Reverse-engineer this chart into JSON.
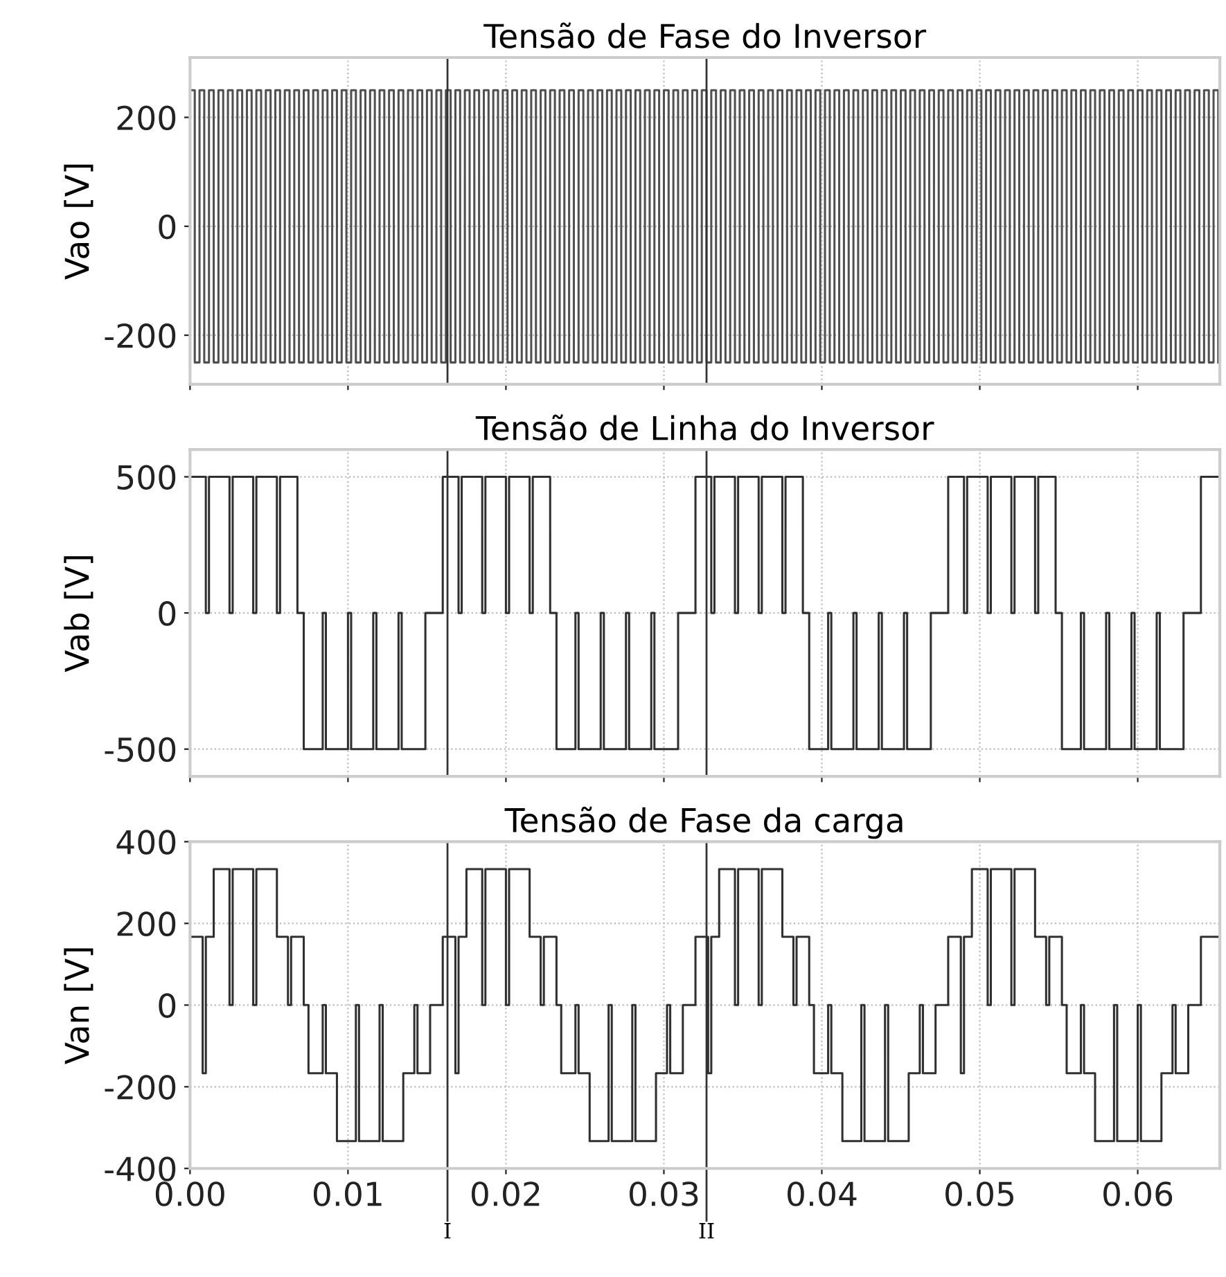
{
  "chart_data": [
    {
      "type": "step",
      "title": "Tensão de Fase do Inversor",
      "ylabel": "Vao [V]",
      "xlim": [
        0,
        0.0652
      ],
      "ylim": [
        -290,
        310
      ],
      "xticks": [
        {
          "value": 0,
          "label": null
        },
        {
          "value": 0.01,
          "label": null
        },
        {
          "value": 0.02,
          "label": null
        },
        {
          "value": 0.03,
          "label": null
        },
        {
          "value": 0.04,
          "label": null
        },
        {
          "value": 0.05,
          "label": null
        },
        {
          "value": 0.06,
          "label": null
        }
      ],
      "yticks": [
        -200,
        0,
        200
      ],
      "tick_labels": "y",
      "grid": true,
      "ref_lines": [
        {
          "axis": "x",
          "value": 0.0163
        },
        {
          "axis": "x",
          "value": 0.0327
        }
      ],
      "series": [
        {
          "color": "#505050",
          "x": [
            0,
            0.0003,
            0.0006,
            0.0009,
            0.0012,
            0.0015,
            0.0018,
            0.0021,
            0.0024,
            0.0027,
            0.003,
            0.0033,
            0.0036,
            0.0039,
            0.0042,
            0.0045,
            0.0048,
            0.0051,
            0.0054,
            0.0057,
            0.006,
            0.0063,
            0.0066,
            0.0069,
            0.0072,
            0.0075,
            0.0078,
            0.0081,
            0.0084,
            0.0087,
            0.009,
            0.0093,
            0.0096,
            0.0099,
            0.0102,
            0.0105,
            0.0108,
            0.0111,
            0.0114,
            0.0117,
            0.012,
            0.0123,
            0.0126,
            0.0129,
            0.0132,
            0.0135,
            0.0138,
            0.0141,
            0.0144,
            0.0147,
            0.015,
            0.0153,
            0.0156,
            0.0159,
            0.0162,
            0.0165,
            0.0168,
            0.0171,
            0.0174,
            0.0177,
            0.018,
            0.0183,
            0.0186,
            0.0189,
            0.0192,
            0.0195,
            0.0198,
            0.0201,
            0.0204,
            0.0207,
            0.021,
            0.0213,
            0.0216,
            0.0219,
            0.0222,
            0.0225,
            0.0228,
            0.0231,
            0.0234,
            0.0237,
            0.024,
            0.0243,
            0.0246,
            0.0249,
            0.0252,
            0.0255,
            0.0258,
            0.0261,
            0.0264,
            0.0267,
            0.027,
            0.0273,
            0.0276,
            0.0279,
            0.0282,
            0.0285,
            0.0288,
            0.0291,
            0.0294,
            0.0297,
            0.03,
            0.0303,
            0.0306,
            0.0309,
            0.0312,
            0.0315,
            0.0318,
            0.0321,
            0.0324,
            0.0327,
            0.033,
            0.0333,
            0.0336,
            0.0339,
            0.0342,
            0.0345,
            0.0348,
            0.0351,
            0.0354,
            0.0357,
            0.036,
            0.0363,
            0.0366,
            0.0369,
            0.0372,
            0.0375,
            0.0378,
            0.0381,
            0.0384,
            0.0387,
            0.039,
            0.0393,
            0.0396,
            0.0399,
            0.0402,
            0.0405,
            0.0408,
            0.0411,
            0.0414,
            0.0417,
            0.042,
            0.0423,
            0.0426,
            0.0429,
            0.0432,
            0.0435,
            0.0438,
            0.0441,
            0.0444,
            0.0447,
            0.045,
            0.0453,
            0.0456,
            0.0459,
            0.0462,
            0.0465,
            0.0468,
            0.0471,
            0.0474,
            0.0477,
            0.048,
            0.0483,
            0.0486,
            0.0489,
            0.0492,
            0.0495,
            0.0498,
            0.0501,
            0.0504,
            0.0507,
            0.051,
            0.0513,
            0.0516,
            0.0519,
            0.0522,
            0.0525,
            0.0528,
            0.0531,
            0.0534,
            0.0537,
            0.054,
            0.0543,
            0.0546,
            0.0549,
            0.0552,
            0.0555,
            0.0558,
            0.0561,
            0.0564,
            0.0567,
            0.057,
            0.0573,
            0.0576,
            0.0579,
            0.0582,
            0.0585,
            0.0588,
            0.0591,
            0.0594,
            0.0597,
            0.06,
            0.0603,
            0.0606,
            0.0609,
            0.0612,
            0.0615,
            0.0618,
            0.0621,
            0.0624,
            0.0627,
            0.063,
            0.0633,
            0.0636,
            0.0639,
            0.0642,
            0.0645,
            0.0648,
            0.0651
          ],
          "values": [
            250,
            -250,
            250,
            -250,
            250,
            -250,
            250,
            -250,
            250,
            -250,
            250,
            -250,
            250,
            -250,
            250,
            -250,
            250,
            -250,
            250,
            -250,
            250,
            -250,
            250,
            -250,
            250,
            -250,
            250,
            -250,
            250,
            -250,
            250,
            -250,
            250,
            -250,
            250,
            -250,
            250,
            -250,
            250,
            -250,
            250,
            -250,
            250,
            -250,
            250,
            -250,
            250,
            -250,
            250,
            -250,
            250,
            -250,
            250,
            -250,
            250,
            -250,
            250,
            -250,
            250,
            -250,
            250,
            -250,
            250,
            -250,
            250,
            -250,
            250,
            -250,
            250,
            -250,
            250,
            -250,
            250,
            -250,
            250,
            -250,
            250,
            -250,
            250,
            -250,
            250,
            -250,
            250,
            -250,
            250,
            -250,
            250,
            -250,
            250,
            -250,
            250,
            -250,
            250,
            -250,
            250,
            -250,
            250,
            -250,
            250,
            -250,
            250,
            -250,
            250,
            -250,
            250,
            -250,
            250,
            -250,
            250,
            -250,
            250,
            -250,
            250,
            -250,
            250,
            -250,
            250,
            -250,
            250,
            -250,
            250,
            -250,
            250,
            -250,
            250,
            -250,
            250,
            -250,
            250,
            -250,
            250,
            -250,
            250,
            -250,
            250,
            -250,
            250,
            -250,
            250,
            -250,
            250,
            -250,
            250,
            -250,
            250,
            -250,
            250,
            -250,
            250,
            -250,
            250,
            -250,
            250,
            -250,
            250,
            -250,
            250,
            -250,
            250,
            -250,
            250,
            -250,
            250,
            -250,
            250,
            -250,
            250,
            -250,
            250,
            -250,
            250,
            -250,
            250,
            -250,
            250,
            -250,
            250,
            -250,
            250,
            -250,
            250,
            -250,
            250,
            -250,
            250,
            -250,
            250,
            -250,
            250,
            -250,
            250,
            -250,
            250,
            -250,
            250,
            -250,
            250,
            -250,
            250,
            -250,
            250,
            -250,
            250,
            -250,
            250,
            -250,
            250,
            -250,
            250,
            -250,
            250,
            -250,
            250,
            -250,
            250,
            -250,
            250,
            -250
          ]
        }
      ]
    },
    {
      "type": "step",
      "title": "Tensão de Linha do Inversor",
      "ylabel": "Vab [V]",
      "xlim": [
        0,
        0.0652
      ],
      "ylim": [
        -600,
        600
      ],
      "xticks": [
        {
          "value": 0,
          "label": null
        },
        {
          "value": 0.01,
          "label": null
        },
        {
          "value": 0.02,
          "label": null
        },
        {
          "value": 0.03,
          "label": null
        },
        {
          "value": 0.04,
          "label": null
        },
        {
          "value": 0.05,
          "label": null
        },
        {
          "value": 0.06,
          "label": null
        }
      ],
      "yticks": [
        -500,
        0,
        500
      ],
      "tick_labels": "y",
      "grid": true,
      "ref_lines": [
        {
          "axis": "x",
          "value": 0.0163
        },
        {
          "axis": "x",
          "value": 0.0327
        }
      ],
      "series": [
        {
          "color": "#303030",
          "x": [
            0,
            0.001,
            0.0012,
            0.0025,
            0.0027,
            0.004,
            0.0042,
            0.0055,
            0.0057,
            0.0068,
            0.0072,
            0.0084,
            0.0086,
            0.01,
            0.0102,
            0.0116,
            0.0118,
            0.0132,
            0.0134,
            0.0149,
            0.016,
            0.017,
            0.0172,
            0.0185,
            0.0187,
            0.02,
            0.0202,
            0.0215,
            0.0217,
            0.0228,
            0.0232,
            0.0244,
            0.0246,
            0.026,
            0.0262,
            0.0276,
            0.0278,
            0.0292,
            0.0294,
            0.0309,
            0.032,
            0.033,
            0.0332,
            0.0345,
            0.0347,
            0.036,
            0.0362,
            0.0375,
            0.0377,
            0.0388,
            0.0392,
            0.0404,
            0.0406,
            0.042,
            0.0422,
            0.0436,
            0.0438,
            0.0452,
            0.0454,
            0.0469,
            0.048,
            0.049,
            0.0492,
            0.0505,
            0.0507,
            0.052,
            0.0522,
            0.0535,
            0.0537,
            0.0548,
            0.0552,
            0.0564,
            0.0566,
            0.058,
            0.0582,
            0.0596,
            0.0598,
            0.0612,
            0.0614,
            0.0629,
            0.064,
            0.0652
          ],
          "values": [
            500,
            0,
            500,
            0,
            500,
            0,
            500,
            0,
            500,
            0,
            -500,
            0,
            -500,
            0,
            -500,
            0,
            -500,
            0,
            -500,
            0,
            500,
            0,
            500,
            0,
            500,
            0,
            500,
            0,
            500,
            0,
            -500,
            0,
            -500,
            0,
            -500,
            0,
            -500,
            0,
            -500,
            0,
            500,
            0,
            500,
            0,
            500,
            0,
            500,
            0,
            500,
            0,
            -500,
            0,
            -500,
            0,
            -500,
            0,
            -500,
            0,
            -500,
            0,
            500,
            0,
            500,
            0,
            500,
            0,
            500,
            0,
            500,
            0,
            -500,
            0,
            -500,
            0,
            -500,
            0,
            -500,
            0,
            -500,
            0,
            500,
            500
          ]
        }
      ]
    },
    {
      "type": "step",
      "title": "Tensão de Fase da carga",
      "ylabel": "Van [V]",
      "xlim": [
        0,
        0.0652
      ],
      "ylim": [
        -400,
        400
      ],
      "xticks": [
        {
          "value": 0,
          "label": "0.00"
        },
        {
          "value": 0.01,
          "label": "0.01"
        },
        {
          "value": 0.02,
          "label": "0.02"
        },
        {
          "value": 0.03,
          "label": "0.03"
        },
        {
          "value": 0.04,
          "label": "0.04"
        },
        {
          "value": 0.05,
          "label": "0.05"
        },
        {
          "value": 0.06,
          "label": "0.06"
        }
      ],
      "yticks": [
        -400,
        -200,
        0,
        200,
        400
      ],
      "grid": true,
      "ref_lines": [
        {
          "axis": "x",
          "value": 0.0163,
          "label": "I"
        },
        {
          "axis": "x",
          "value": 0.0327,
          "label": "II"
        }
      ],
      "series": [
        {
          "color": "#303030",
          "x": [
            0,
            0.0008,
            0.001,
            0.0015,
            0.0025,
            0.0027,
            0.004,
            0.0042,
            0.0055,
            0.0062,
            0.0064,
            0.0072,
            0.0075,
            0.0084,
            0.0086,
            0.0093,
            0.0105,
            0.0107,
            0.012,
            0.0122,
            0.0135,
            0.0142,
            0.0144,
            0.0152,
            0.016,
            0.0168,
            0.017,
            0.0175,
            0.0185,
            0.0187,
            0.02,
            0.0202,
            0.0215,
            0.0222,
            0.0224,
            0.0232,
            0.0235,
            0.0244,
            0.0246,
            0.0253,
            0.0265,
            0.0267,
            0.028,
            0.0282,
            0.0295,
            0.0302,
            0.0304,
            0.0312,
            0.032,
            0.0328,
            0.033,
            0.0335,
            0.0345,
            0.0347,
            0.036,
            0.0362,
            0.0375,
            0.0382,
            0.0384,
            0.0392,
            0.0395,
            0.0404,
            0.0406,
            0.0413,
            0.0425,
            0.0427,
            0.044,
            0.0442,
            0.0455,
            0.0462,
            0.0464,
            0.0472,
            0.048,
            0.0488,
            0.049,
            0.0495,
            0.0505,
            0.0507,
            0.052,
            0.0522,
            0.0535,
            0.0542,
            0.0544,
            0.0552,
            0.0555,
            0.0564,
            0.0566,
            0.0573,
            0.0585,
            0.0587,
            0.06,
            0.0602,
            0.0615,
            0.0622,
            0.0624,
            0.0632,
            0.064,
            0.0652
          ],
          "values": [
            167,
            -167,
            167,
            333,
            0,
            333,
            0,
            333,
            167,
            0,
            167,
            0,
            -167,
            0,
            -167,
            -333,
            0,
            -333,
            0,
            -333,
            -167,
            0,
            -167,
            0,
            167,
            -167,
            167,
            333,
            0,
            333,
            0,
            333,
            167,
            0,
            167,
            0,
            -167,
            0,
            -167,
            -333,
            0,
            -333,
            0,
            -333,
            -167,
            0,
            -167,
            0,
            167,
            -167,
            167,
            333,
            0,
            333,
            0,
            333,
            167,
            0,
            167,
            0,
            -167,
            0,
            -167,
            -333,
            0,
            -333,
            0,
            -333,
            -167,
            0,
            -167,
            0,
            167,
            -167,
            167,
            333,
            0,
            333,
            0,
            333,
            167,
            0,
            167,
            0,
            -167,
            0,
            -167,
            -333,
            0,
            -333,
            0,
            -333,
            -167,
            0,
            -167,
            0,
            167,
            167
          ]
        }
      ]
    }
  ]
}
